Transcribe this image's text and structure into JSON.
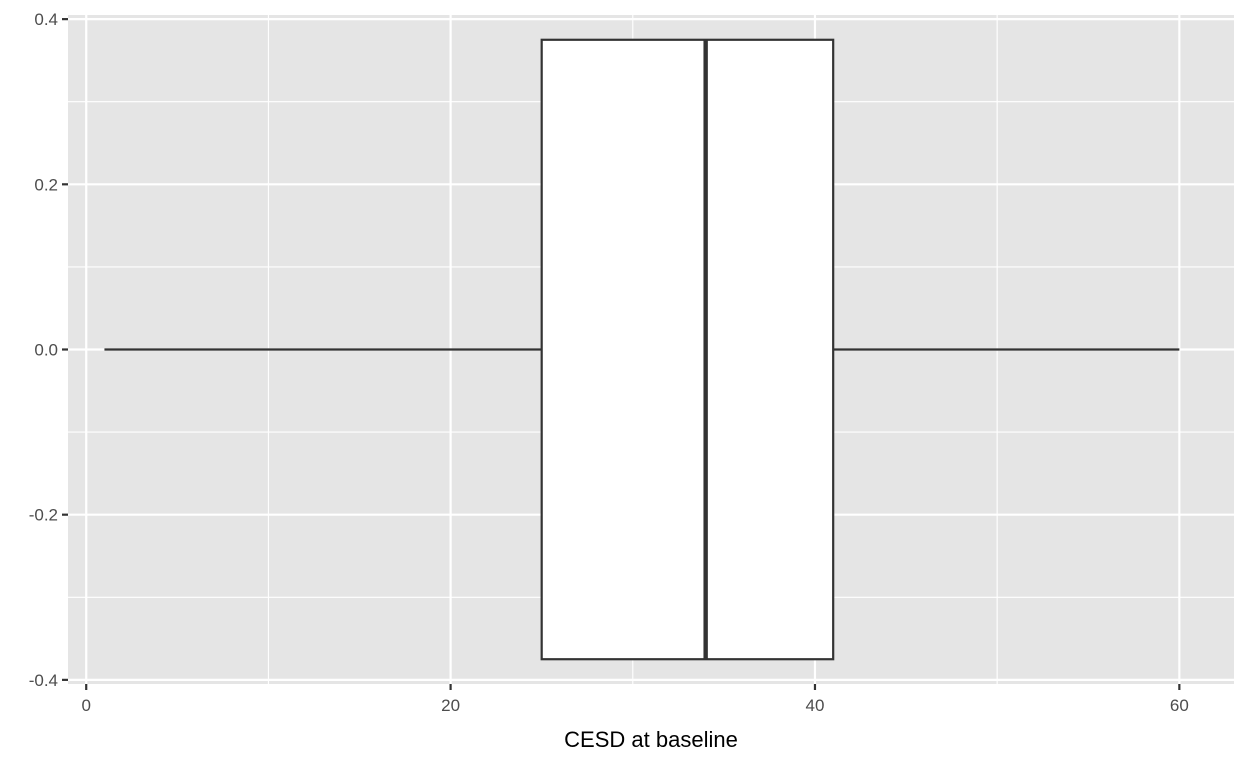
{
  "chart_data": {
    "type": "boxplot",
    "title": "",
    "xlabel": "CESD at baseline",
    "ylabel": "",
    "orientation": "horizontal",
    "box": {
      "min": 1,
      "q1": 25,
      "median": 34,
      "q3": 41,
      "max": 60,
      "y_center": 0.0,
      "y_lower": -0.375,
      "y_upper": 0.375
    },
    "xlim": [
      -1,
      63
    ],
    "ylim": [
      -0.405,
      0.405
    ],
    "x_ticks": [
      0,
      20,
      40,
      60
    ],
    "x_tick_labels": [
      "0",
      "20",
      "40",
      "60"
    ],
    "y_ticks": [
      -0.4,
      -0.2,
      0.0,
      0.2,
      0.4
    ],
    "y_tick_labels": [
      "-0.4",
      "-0.2",
      "0.0",
      "0.2",
      "0.4"
    ],
    "grid": true,
    "colors": {
      "panel_background": "#e5e5e5",
      "grid": "#ffffff",
      "box_fill": "#ffffff",
      "box_line": "#333333",
      "tick_label": "#4d4d4d",
      "tick_mark": "#333333"
    }
  }
}
